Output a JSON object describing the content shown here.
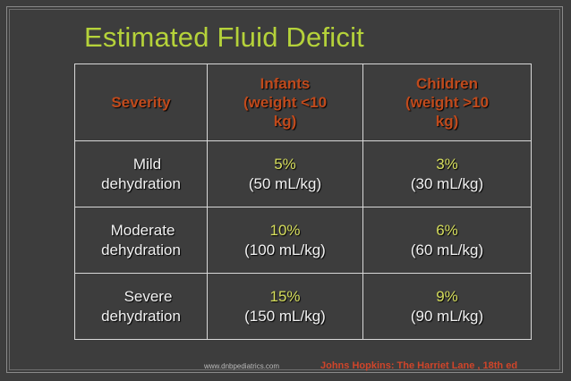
{
  "title": "Estimated Fluid Deficit",
  "table": {
    "headers": {
      "severity": "Severity",
      "infants": [
        "Infants",
        "(weight <10",
        "kg)"
      ],
      "children": [
        "Children",
        "(weight >10",
        "kg)"
      ]
    },
    "rows": [
      {
        "label": [
          "Mild",
          "dehydration"
        ],
        "infants": {
          "percent": "5%",
          "volume": "(50 mL/kg)"
        },
        "children": {
          "percent": "3%",
          "volume": "(30 mL/kg)"
        }
      },
      {
        "label": [
          "Moderate",
          "dehydration"
        ],
        "infants": {
          "percent": "10%",
          "volume": "(100 mL/kg)"
        },
        "children": {
          "percent": "6%",
          "volume": "(60 mL/kg)"
        }
      },
      {
        "label": [
          "Severe",
          "dehydration"
        ],
        "infants": {
          "percent": "15%",
          "volume": "(150 mL/kg)"
        },
        "children": {
          "percent": "9%",
          "volume": "(90 mL/kg)"
        }
      }
    ]
  },
  "footer": {
    "website": "www.dnbpediatrics.com",
    "source": "Johns Hopkins: The Harriet Lane , 18th ed"
  },
  "colors": {
    "background": "#3d3d3d",
    "title": "#b5d23a",
    "header_text": "#c04a1c",
    "percent_text": "#d6de5c",
    "body_text": "#f2f2f2",
    "source_text": "#d0452a"
  }
}
